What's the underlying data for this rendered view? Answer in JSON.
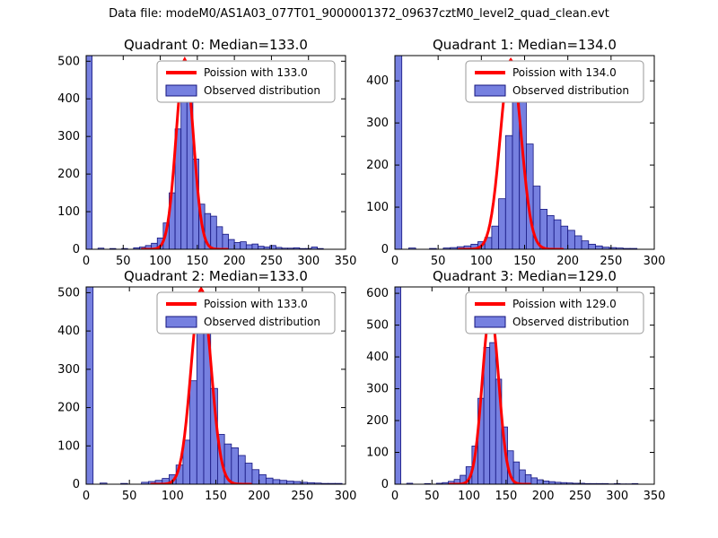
{
  "figure_title": "Data file: modeM0/AS1A03_077T01_9000001372_09637cztM0_level2_quad_clean.evt",
  "colors": {
    "background": "#ffffff",
    "bar_fill": "#7680e0",
    "bar_edge": "#14147e",
    "curve": "#ff0000",
    "axis": "#000000",
    "legend_border": "#999999",
    "text": "#000000"
  },
  "chart_data": [
    {
      "type": "bar",
      "title": "Quadrant 0: Median=133.0",
      "legend": [
        {
          "kind": "line",
          "label": "Poission with 133.0"
        },
        {
          "kind": "patch",
          "label": "Observed distribution"
        }
      ],
      "xlim": [
        0,
        350
      ],
      "ylim": [
        0,
        515
      ],
      "xticks": [
        0,
        50,
        100,
        150,
        200,
        250,
        300,
        350
      ],
      "yticks": [
        0,
        100,
        200,
        300,
        400,
        500
      ],
      "bin_width": 8,
      "bins": [
        [
          0,
          515
        ],
        [
          16,
          3
        ],
        [
          32,
          2
        ],
        [
          48,
          2
        ],
        [
          64,
          4
        ],
        [
          72,
          6
        ],
        [
          80,
          10
        ],
        [
          88,
          16
        ],
        [
          96,
          30
        ],
        [
          104,
          70
        ],
        [
          112,
          150
        ],
        [
          120,
          320
        ],
        [
          128,
          490
        ],
        [
          136,
          420
        ],
        [
          144,
          240
        ],
        [
          152,
          120
        ],
        [
          160,
          95
        ],
        [
          168,
          88
        ],
        [
          176,
          60
        ],
        [
          184,
          40
        ],
        [
          192,
          26
        ],
        [
          200,
          18
        ],
        [
          208,
          20
        ],
        [
          216,
          12
        ],
        [
          224,
          14
        ],
        [
          232,
          8
        ],
        [
          240,
          6
        ],
        [
          248,
          10
        ],
        [
          256,
          5
        ],
        [
          264,
          3
        ],
        [
          272,
          3
        ],
        [
          280,
          4
        ],
        [
          288,
          2
        ],
        [
          296,
          2
        ],
        [
          304,
          6
        ],
        [
          312,
          2
        ]
      ],
      "curve": {
        "mean": 133.0,
        "sigma": 11.5,
        "amplitude": 505
      }
    },
    {
      "type": "bar",
      "title": "Quadrant 1: Median=134.0",
      "legend": [
        {
          "kind": "line",
          "label": "Poission with 134.0"
        },
        {
          "kind": "patch",
          "label": "Observed distribution"
        }
      ],
      "xlim": [
        0,
        300
      ],
      "ylim": [
        0,
        460
      ],
      "xticks": [
        0,
        50,
        100,
        150,
        200,
        250,
        300
      ],
      "yticks": [
        0,
        100,
        200,
        300,
        400
      ],
      "bin_width": 8,
      "bins": [
        [
          0,
          460
        ],
        [
          16,
          3
        ],
        [
          40,
          2
        ],
        [
          56,
          3
        ],
        [
          64,
          4
        ],
        [
          72,
          6
        ],
        [
          80,
          8
        ],
        [
          88,
          12
        ],
        [
          96,
          18
        ],
        [
          104,
          28
        ],
        [
          112,
          55
        ],
        [
          120,
          120
        ],
        [
          128,
          270
        ],
        [
          136,
          430
        ],
        [
          144,
          400
        ],
        [
          152,
          250
        ],
        [
          160,
          150
        ],
        [
          168,
          95
        ],
        [
          176,
          80
        ],
        [
          184,
          70
        ],
        [
          192,
          55
        ],
        [
          200,
          45
        ],
        [
          208,
          32
        ],
        [
          216,
          20
        ],
        [
          224,
          12
        ],
        [
          232,
          8
        ],
        [
          240,
          5
        ],
        [
          248,
          4
        ],
        [
          256,
          3
        ],
        [
          264,
          2
        ],
        [
          272,
          2
        ]
      ],
      "curve": {
        "mean": 134.0,
        "sigma": 12.0,
        "amplitude": 450
      }
    },
    {
      "type": "bar",
      "title": "Quadrant 2: Median=133.0",
      "legend": [
        {
          "kind": "line",
          "label": "Poission with 133.0"
        },
        {
          "kind": "patch",
          "label": "Observed distribution"
        }
      ],
      "xlim": [
        0,
        300
      ],
      "ylim": [
        0,
        515
      ],
      "xticks": [
        0,
        50,
        100,
        150,
        200,
        250,
        300
      ],
      "yticks": [
        0,
        100,
        200,
        300,
        400,
        500
      ],
      "bin_width": 8,
      "bins": [
        [
          0,
          515
        ],
        [
          16,
          3
        ],
        [
          40,
          2
        ],
        [
          64,
          5
        ],
        [
          72,
          7
        ],
        [
          80,
          10
        ],
        [
          88,
          15
        ],
        [
          96,
          25
        ],
        [
          104,
          50
        ],
        [
          112,
          115
        ],
        [
          120,
          270
        ],
        [
          128,
          470
        ],
        [
          136,
          445
        ],
        [
          144,
          250
        ],
        [
          152,
          130
        ],
        [
          160,
          105
        ],
        [
          168,
          95
        ],
        [
          176,
          75
        ],
        [
          184,
          55
        ],
        [
          192,
          38
        ],
        [
          200,
          25
        ],
        [
          208,
          16
        ],
        [
          216,
          12
        ],
        [
          224,
          10
        ],
        [
          232,
          8
        ],
        [
          240,
          7
        ],
        [
          248,
          5
        ],
        [
          256,
          4
        ],
        [
          264,
          3
        ],
        [
          272,
          2
        ],
        [
          280,
          2
        ],
        [
          288,
          2
        ]
      ],
      "curve": {
        "mean": 133.0,
        "sigma": 11.5,
        "amplitude": 510
      }
    },
    {
      "type": "bar",
      "title": "Quadrant 3: Median=129.0",
      "legend": [
        {
          "kind": "line",
          "label": "Poission with 129.0"
        },
        {
          "kind": "patch",
          "label": "Observed distribution"
        }
      ],
      "xlim": [
        0,
        350
      ],
      "ylim": [
        0,
        620
      ],
      "xticks": [
        0,
        50,
        100,
        150,
        200,
        250,
        300,
        350
      ],
      "yticks": [
        0,
        100,
        200,
        300,
        400,
        500,
        600
      ],
      "bin_width": 8,
      "bins": [
        [
          0,
          620
        ],
        [
          16,
          3
        ],
        [
          40,
          2
        ],
        [
          56,
          3
        ],
        [
          64,
          5
        ],
        [
          72,
          9
        ],
        [
          80,
          15
        ],
        [
          88,
          28
        ],
        [
          96,
          55
        ],
        [
          104,
          120
        ],
        [
          112,
          270
        ],
        [
          120,
          430
        ],
        [
          128,
          445
        ],
        [
          136,
          330
        ],
        [
          144,
          180
        ],
        [
          152,
          105
        ],
        [
          160,
          70
        ],
        [
          168,
          45
        ],
        [
          176,
          30
        ],
        [
          184,
          20
        ],
        [
          192,
          14
        ],
        [
          200,
          10
        ],
        [
          208,
          8
        ],
        [
          216,
          6
        ],
        [
          224,
          5
        ],
        [
          232,
          4
        ],
        [
          240,
          3
        ],
        [
          248,
          3
        ],
        [
          256,
          2
        ],
        [
          264,
          2
        ],
        [
          272,
          2
        ],
        [
          280,
          2
        ],
        [
          288,
          1
        ],
        [
          296,
          2
        ],
        [
          304,
          1
        ],
        [
          312,
          1
        ],
        [
          320,
          2
        ]
      ],
      "curve": {
        "mean": 129.0,
        "sigma": 11.0,
        "amplitude": 545
      }
    }
  ]
}
